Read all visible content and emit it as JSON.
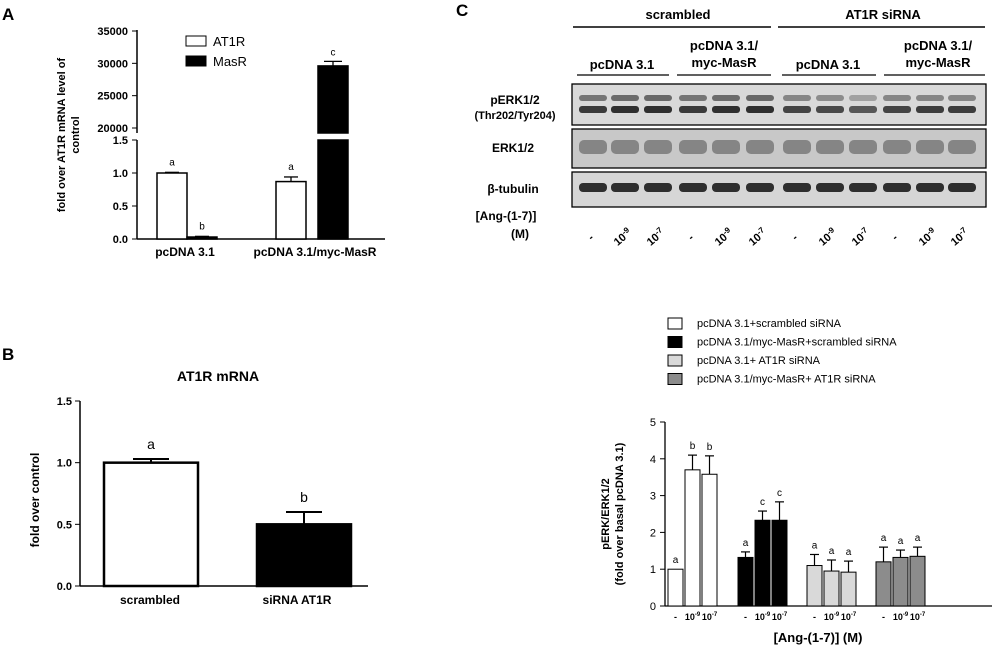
{
  "panels": {
    "A": {
      "letter": "A",
      "ylabel_line1": "fold over AT1R mRNA level of",
      "ylabel_line2": "control",
      "legend": [
        {
          "label": "AT1R",
          "fill": "#ffffff"
        },
        {
          "label": "MasR",
          "fill": "#000000"
        }
      ],
      "upper_ticks": [
        "35000",
        "30000",
        "25000",
        "20000"
      ],
      "lower_ticks": [
        "1.5",
        "1.0",
        "0.5",
        "0.0"
      ]
    },
    "B": {
      "letter": "B",
      "title": "AT1R mRNA",
      "ylabel": "fold over control",
      "yticks": [
        "1.5",
        "1.0",
        "0.5",
        "0.0"
      ]
    },
    "C": {
      "letter": "C",
      "blot": {
        "group_labels": [
          "scrambled",
          "AT1R siRNA"
        ],
        "sub_labels": [
          [
            "pcDNA 3.1"
          ],
          [
            "pcDNA 3.1/",
            "myc-MasR"
          ],
          [
            "pcDNA 3.1"
          ],
          [
            "pcDNA 3.1/",
            "myc-MasR"
          ]
        ],
        "row_labels": [
          {
            "line1": "pERK1/2",
            "line2": "(Thr202/Tyr204)"
          },
          {
            "line1": "ERK1/2",
            "line2": ""
          },
          {
            "line1": "β-tubulin",
            "line2": ""
          }
        ],
        "treatment_label_line1": "[Ang-(1-7)]",
        "treatment_label_line2": "(M)",
        "lane_labels": [
          "-",
          "10-9",
          "10-7",
          "-",
          "10-9",
          "10-7",
          "-",
          "10-9",
          "10-7",
          "-",
          "10-9",
          "10-7"
        ]
      },
      "legend": [
        {
          "label": "pcDNA 3.1+scrambled siRNA",
          "fill": "#ffffff"
        },
        {
          "label": "pcDNA 3.1/myc-MasR+scrambled siRNA",
          "fill": "#000000"
        },
        {
          "label": "pcDNA 3.1+ AT1R siRNA",
          "fill": "#d9d9d9"
        },
        {
          "label": "pcDNA 3.1/myc-MasR+ AT1R siRNA",
          "fill": "#8c8c8c"
        }
      ],
      "ylabel_line1": "pERK/ERK1/2",
      "ylabel_line2": "(fold over basal pcDNA 3.1)",
      "xlabel": "[Ang-(1-7)] (M)",
      "yticks": [
        "0",
        "1",
        "2",
        "3",
        "4",
        "5"
      ]
    }
  },
  "chart_data": [
    {
      "type": "bar",
      "panel": "A",
      "ylabel": "fold over AT1R mRNA level of control",
      "broken_axis": true,
      "ylim_lower": [
        0,
        1.5
      ],
      "ylim_upper": [
        20000,
        35000
      ],
      "categories": [
        "pcDNA 3.1",
        "pcDNA 3.1/myc-MasR"
      ],
      "series": [
        {
          "name": "AT1R",
          "values": [
            1.0,
            0.87
          ],
          "errors": [
            0.01,
            0.07
          ],
          "letters": [
            "a",
            "a"
          ]
        },
        {
          "name": "MasR",
          "values": [
            0.03,
            29600
          ],
          "errors": [
            0.01,
            700
          ],
          "letters": [
            "b",
            "c"
          ]
        }
      ]
    },
    {
      "type": "bar",
      "panel": "B",
      "title": "AT1R mRNA",
      "ylabel": "fold over control",
      "ylim": [
        0,
        1.5
      ],
      "categories": [
        "scrambled",
        "siRNA AT1R"
      ],
      "values": [
        1.0,
        0.5
      ],
      "errors": [
        0.03,
        0.1
      ],
      "fills": [
        "#ffffff",
        "#000000"
      ],
      "letters": [
        "a",
        "b"
      ]
    },
    {
      "type": "bar",
      "panel": "C",
      "ylabel": "pERK/ERK1/2 (fold over basal pcDNA 3.1)",
      "xlabel": "[Ang-(1-7)] (M)",
      "ylim": [
        0,
        5
      ],
      "categories": [
        "-",
        "10-9",
        "10-7"
      ],
      "series": [
        {
          "name": "pcDNA 3.1+scrambled siRNA",
          "values": [
            1.0,
            3.7,
            3.58
          ],
          "errors": [
            0,
            0.4,
            0.5
          ],
          "letters": [
            "a",
            "b",
            "b"
          ]
        },
        {
          "name": "pcDNA 3.1/myc-MasR+scrambled siRNA",
          "values": [
            1.32,
            2.33,
            2.33
          ],
          "errors": [
            0.15,
            0.25,
            0.5
          ],
          "letters": [
            "a",
            "c",
            "c"
          ]
        },
        {
          "name": "pcDNA 3.1+ AT1R siRNA",
          "values": [
            1.1,
            0.95,
            0.92
          ],
          "errors": [
            0.3,
            0.3,
            0.3
          ],
          "letters": [
            "a",
            "a",
            "a"
          ]
        },
        {
          "name": "pcDNA 3.1/myc-MasR+ AT1R siRNA",
          "values": [
            1.2,
            1.32,
            1.35
          ],
          "errors": [
            0.4,
            0.2,
            0.25
          ],
          "letters": [
            "a",
            "a",
            "a"
          ]
        }
      ]
    }
  ]
}
